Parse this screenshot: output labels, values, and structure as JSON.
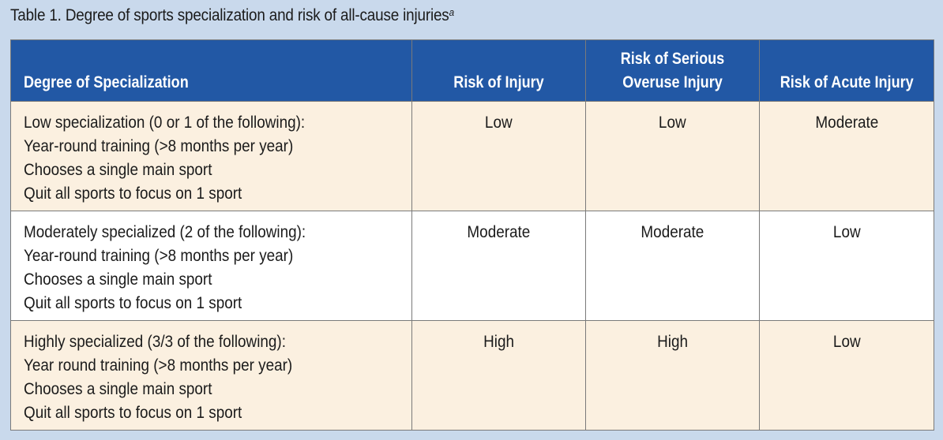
{
  "caption": {
    "text": "Table 1.  Degree of sports specialization and risk of all-cause injuries",
    "footnote_marker": "a"
  },
  "colors": {
    "page_background": "#c9d9ec",
    "header_background": "#2258a5",
    "row_tint": "#fbf0e0",
    "row_plain": "#ffffff"
  },
  "headers": {
    "degree": "Degree of Specialization",
    "injury": "Risk of Injury",
    "overuse_line1": "Risk of Serious",
    "overuse_line2": "Overuse Injury",
    "acute": "Risk of Acute Injury"
  },
  "rows": [
    {
      "lines": [
        "Low specialization (0 or 1 of the following):",
        "Year-round training (>8 months per year)",
        "Chooses a single main sport",
        "Quit all sports to focus on 1 sport"
      ],
      "injury": "Low",
      "overuse": "Low",
      "acute": "Moderate"
    },
    {
      "lines": [
        "Moderately specialized (2 of the following):",
        "Year-round training (>8 months per year)",
        "Chooses a single main sport",
        "Quit all sports to focus on 1 sport"
      ],
      "injury": "Moderate",
      "overuse": "Moderate",
      "acute": "Low"
    },
    {
      "lines": [
        "Highly specialized (3/3 of the following):",
        "Year round training (>8 months per year)",
        "Chooses a single main sport",
        "Quit all sports to focus on 1 sport"
      ],
      "injury": "High",
      "overuse": "High",
      "acute": "Low"
    }
  ]
}
